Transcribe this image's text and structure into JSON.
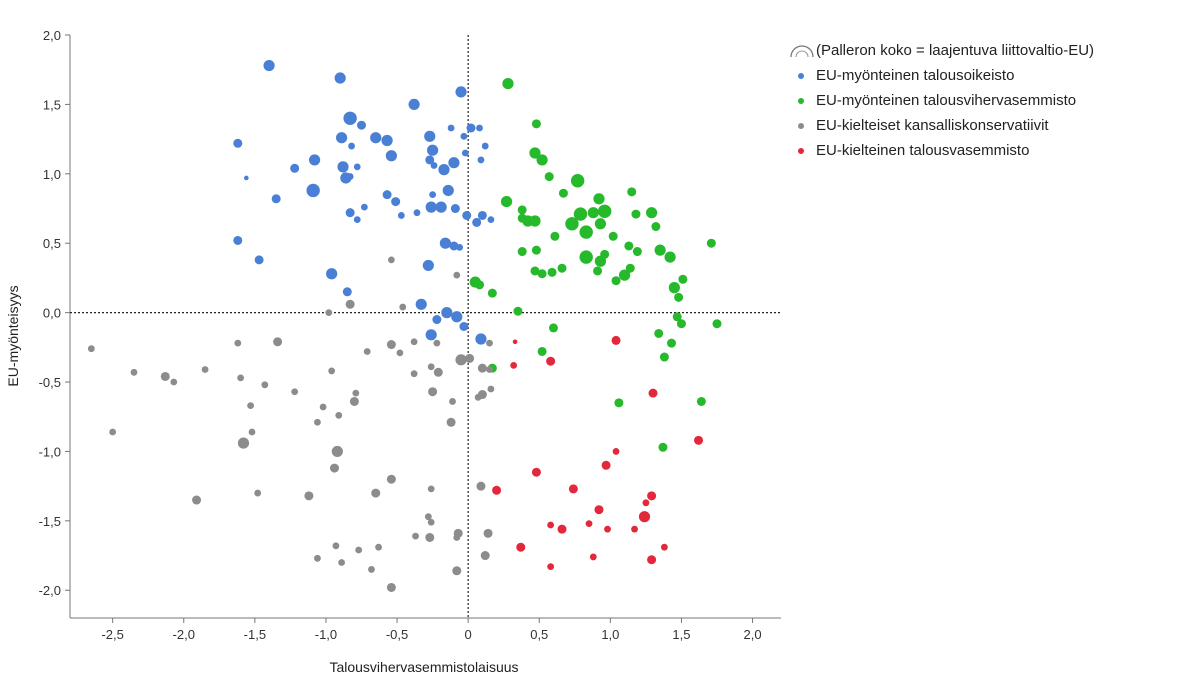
{
  "chart_data": {
    "type": "scatter",
    "xlabel": "Talousvihervasemmistolaisuus",
    "ylabel": "EU-myönteisyys",
    "xlim": [
      -2.8,
      2.2
    ],
    "ylim": [
      -2.2,
      2.0
    ],
    "x_ticks": [
      "-2,5",
      "-2,0",
      "-1,5",
      "-1,0",
      "-0,5",
      "0",
      "0,5",
      "1,0",
      "1,5",
      "2,0"
    ],
    "x_tick_values": [
      -2.5,
      -2.0,
      -1.5,
      -1.0,
      -0.5,
      0,
      0.5,
      1.0,
      1.5,
      2.0
    ],
    "y_ticks": [
      "2,0",
      "1,5",
      "1,0",
      "0,5",
      "0,0",
      "-0,5",
      "-1,0",
      "-1,5",
      "-2,0"
    ],
    "y_tick_values": [
      2.0,
      1.5,
      1.0,
      0.5,
      0.0,
      -0.5,
      -1.0,
      -1.5,
      -2.0
    ],
    "reference_lines": {
      "x": 0,
      "y": 0,
      "style": "dotted"
    },
    "grid": false,
    "legend_position": "top-right",
    "size_legend": "(Palleron koko = laajentuva liittovaltio-EU)",
    "point_size": "s in 1–5 scale (bubble size)",
    "series": [
      {
        "name": "EU-myönteinen talousoikeisto",
        "color": "#4a7fd6",
        "points": [
          [
            -1.4,
            1.78,
            4
          ],
          [
            -0.9,
            1.69,
            4
          ],
          [
            -0.05,
            1.59,
            4
          ],
          [
            -0.38,
            1.5,
            4
          ],
          [
            -0.83,
            1.4,
            5
          ],
          [
            -0.75,
            1.35,
            3
          ],
          [
            -0.12,
            1.33,
            2
          ],
          [
            -0.65,
            1.26,
            4
          ],
          [
            -0.57,
            1.24,
            4
          ],
          [
            -0.27,
            1.27,
            4
          ],
          [
            -0.89,
            1.26,
            4
          ],
          [
            -1.62,
            1.22,
            3
          ],
          [
            -0.82,
            1.2,
            2
          ],
          [
            -0.25,
            1.17,
            4
          ],
          [
            0.02,
            1.33,
            3
          ],
          [
            -0.03,
            1.27,
            2
          ],
          [
            0.08,
            1.33,
            2
          ],
          [
            0.12,
            1.2,
            2
          ],
          [
            -0.1,
            1.08,
            4
          ],
          [
            -0.54,
            1.13,
            4
          ],
          [
            -0.27,
            1.1,
            3
          ],
          [
            -0.02,
            1.15,
            2
          ],
          [
            -1.08,
            1.1,
            4
          ],
          [
            -1.22,
            1.04,
            3
          ],
          [
            -0.88,
            1.05,
            4
          ],
          [
            -0.78,
            1.05,
            2
          ],
          [
            -0.17,
            1.03,
            4
          ],
          [
            -0.24,
            1.06,
            2
          ],
          [
            0.09,
            1.1,
            2
          ],
          [
            -1.56,
            0.97,
            1
          ],
          [
            -0.86,
            0.97,
            4
          ],
          [
            -0.83,
            0.98,
            2
          ],
          [
            -1.09,
            0.88,
            5
          ],
          [
            -0.14,
            0.88,
            4
          ],
          [
            -0.57,
            0.85,
            3
          ],
          [
            -0.25,
            0.85,
            2
          ],
          [
            -1.35,
            0.82,
            3
          ],
          [
            -0.51,
            0.8,
            3
          ],
          [
            -0.73,
            0.76,
            2
          ],
          [
            -0.19,
            0.76,
            4
          ],
          [
            -0.26,
            0.76,
            4
          ],
          [
            -0.09,
            0.75,
            3
          ],
          [
            -0.83,
            0.72,
            3
          ],
          [
            -0.78,
            0.67,
            2
          ],
          [
            -0.47,
            0.7,
            2
          ],
          [
            -0.36,
            0.72,
            2
          ],
          [
            -0.01,
            0.7,
            3
          ],
          [
            0.1,
            0.7,
            3
          ],
          [
            0.16,
            0.67,
            2
          ],
          [
            0.06,
            0.65,
            3
          ],
          [
            -1.62,
            0.52,
            3
          ],
          [
            -0.16,
            0.5,
            4
          ],
          [
            -0.1,
            0.48,
            3
          ],
          [
            -0.06,
            0.47,
            2
          ],
          [
            -1.47,
            0.38,
            3
          ],
          [
            -0.96,
            0.28,
            4
          ],
          [
            -0.28,
            0.34,
            4
          ],
          [
            -0.85,
            0.15,
            3
          ],
          [
            -0.33,
            0.06,
            4
          ],
          [
            -0.15,
            0.0,
            4
          ],
          [
            -0.08,
            -0.03,
            4
          ],
          [
            -0.22,
            -0.05,
            3
          ],
          [
            -0.03,
            -0.1,
            3
          ],
          [
            -0.26,
            -0.16,
            4
          ],
          [
            0.09,
            -0.19,
            4
          ]
        ]
      },
      {
        "name": "EU-myönteinen talousvihervasemmisto",
        "color": "#25b92b",
        "points": [
          [
            0.28,
            1.65,
            4
          ],
          [
            0.48,
            1.36,
            3
          ],
          [
            0.47,
            1.15,
            4
          ],
          [
            0.52,
            1.1,
            4
          ],
          [
            0.57,
            0.98,
            3
          ],
          [
            0.27,
            0.8,
            4
          ],
          [
            0.38,
            0.74,
            3
          ],
          [
            0.67,
            0.86,
            3
          ],
          [
            0.77,
            0.95,
            5
          ],
          [
            0.88,
            0.72,
            4
          ],
          [
            0.92,
            0.82,
            4
          ],
          [
            0.96,
            0.73,
            5
          ],
          [
            1.15,
            0.87,
            3
          ],
          [
            1.18,
            0.71,
            3
          ],
          [
            1.29,
            0.72,
            4
          ],
          [
            0.38,
            0.68,
            3
          ],
          [
            0.42,
            0.66,
            4
          ],
          [
            0.47,
            0.66,
            4
          ],
          [
            0.73,
            0.64,
            5
          ],
          [
            0.83,
            0.58,
            5
          ],
          [
            0.79,
            0.71,
            5
          ],
          [
            0.93,
            0.64,
            4
          ],
          [
            1.02,
            0.55,
            3
          ],
          [
            1.32,
            0.62,
            3
          ],
          [
            0.61,
            0.55,
            3
          ],
          [
            0.48,
            0.45,
            3
          ],
          [
            0.38,
            0.44,
            3
          ],
          [
            1.13,
            0.48,
            3
          ],
          [
            1.19,
            0.44,
            3
          ],
          [
            1.35,
            0.45,
            4
          ],
          [
            1.42,
            0.4,
            4
          ],
          [
            0.83,
            0.4,
            5
          ],
          [
            0.93,
            0.37,
            4
          ],
          [
            0.96,
            0.42,
            3
          ],
          [
            0.66,
            0.32,
            3
          ],
          [
            0.47,
            0.3,
            3
          ],
          [
            0.52,
            0.28,
            3
          ],
          [
            0.59,
            0.29,
            3
          ],
          [
            0.91,
            0.3,
            3
          ],
          [
            1.14,
            0.32,
            3
          ],
          [
            1.1,
            0.27,
            4
          ],
          [
            1.04,
            0.23,
            3
          ],
          [
            1.51,
            0.24,
            3
          ],
          [
            1.45,
            0.18,
            4
          ],
          [
            1.48,
            0.11,
            3
          ],
          [
            1.71,
            0.5,
            3
          ],
          [
            0.05,
            0.22,
            4
          ],
          [
            0.08,
            0.2,
            3
          ],
          [
            0.17,
            0.14,
            3
          ],
          [
            0.35,
            0.01,
            3
          ],
          [
            1.47,
            -0.03,
            3
          ],
          [
            1.5,
            -0.08,
            3
          ],
          [
            1.75,
            -0.08,
            3
          ],
          [
            0.6,
            -0.11,
            3
          ],
          [
            1.34,
            -0.15,
            3
          ],
          [
            1.43,
            -0.22,
            3
          ],
          [
            1.38,
            -0.32,
            3
          ],
          [
            0.52,
            -0.28,
            3
          ],
          [
            0.17,
            -0.4,
            3
          ],
          [
            1.06,
            -0.65,
            3
          ],
          [
            1.64,
            -0.64,
            3
          ],
          [
            1.37,
            -0.97,
            3
          ]
        ]
      },
      {
        "name": "EU-kielteiset kansalliskonservatiivit",
        "color": "#8c8c8c",
        "points": [
          [
            -2.65,
            -0.26,
            2
          ],
          [
            -2.35,
            -0.43,
            2
          ],
          [
            -2.13,
            -0.46,
            3
          ],
          [
            -2.07,
            -0.5,
            2
          ],
          [
            -1.85,
            -0.41,
            2
          ],
          [
            -1.62,
            -0.22,
            2
          ],
          [
            -1.34,
            -0.21,
            3
          ],
          [
            -1.43,
            -0.52,
            2
          ],
          [
            -1.53,
            -0.67,
            2
          ],
          [
            -1.22,
            -0.57,
            2
          ],
          [
            -1.02,
            -0.68,
            2
          ],
          [
            -0.96,
            -0.42,
            2
          ],
          [
            -1.06,
            -0.79,
            2
          ],
          [
            -0.91,
            -0.74,
            2
          ],
          [
            -0.8,
            -0.64,
            3
          ],
          [
            -0.79,
            -0.58,
            2
          ],
          [
            -0.71,
            -0.28,
            2
          ],
          [
            -0.54,
            -0.23,
            3
          ],
          [
            -0.48,
            -0.29,
            2
          ],
          [
            -0.38,
            -0.21,
            2
          ],
          [
            -0.22,
            -0.22,
            2
          ],
          [
            -0.38,
            -0.44,
            2
          ],
          [
            -0.26,
            -0.39,
            2
          ],
          [
            -0.21,
            -0.43,
            3
          ],
          [
            -0.25,
            -0.57,
            3
          ],
          [
            -0.11,
            -0.64,
            2
          ],
          [
            -0.05,
            -0.34,
            4
          ],
          [
            0.01,
            -0.33,
            3
          ],
          [
            0.1,
            -0.4,
            3
          ],
          [
            0.15,
            -0.41,
            2
          ],
          [
            0.1,
            -0.59,
            3
          ],
          [
            0.16,
            -0.55,
            2
          ],
          [
            0.07,
            -0.61,
            2
          ],
          [
            -0.12,
            -0.79,
            3
          ],
          [
            -1.58,
            -0.94,
            4
          ],
          [
            -1.52,
            -0.86,
            2
          ],
          [
            -0.92,
            -1.0,
            4
          ],
          [
            -0.94,
            -1.12,
            3
          ],
          [
            -2.5,
            -0.86,
            2
          ],
          [
            -1.91,
            -1.35,
            3
          ],
          [
            -1.48,
            -1.3,
            2
          ],
          [
            -1.12,
            -1.32,
            3
          ],
          [
            -0.54,
            -1.2,
            3
          ],
          [
            -0.65,
            -1.3,
            3
          ],
          [
            -0.26,
            -1.27,
            2
          ],
          [
            -0.28,
            -1.47,
            2
          ],
          [
            -0.26,
            -1.51,
            2
          ],
          [
            -0.37,
            -1.61,
            2
          ],
          [
            -0.27,
            -1.62,
            3
          ],
          [
            -0.07,
            -1.59,
            3
          ],
          [
            -0.08,
            -1.62,
            2
          ],
          [
            0.09,
            -1.25,
            3
          ],
          [
            0.14,
            -1.59,
            3
          ],
          [
            0.12,
            -1.75,
            3
          ],
          [
            -0.63,
            -1.69,
            2
          ],
          [
            -0.77,
            -1.71,
            2
          ],
          [
            -0.93,
            -1.68,
            2
          ],
          [
            -0.89,
            -1.8,
            2
          ],
          [
            -1.06,
            -1.77,
            2
          ],
          [
            -0.68,
            -1.85,
            2
          ],
          [
            -0.54,
            -1.98,
            3
          ],
          [
            -0.08,
            -1.86,
            3
          ],
          [
            -0.98,
            0.0,
            2
          ],
          [
            -0.83,
            0.06,
            3
          ],
          [
            -0.54,
            0.38,
            2
          ],
          [
            -0.08,
            0.27,
            2
          ],
          [
            -0.46,
            0.04,
            2
          ],
          [
            -1.6,
            -0.47,
            2
          ],
          [
            0.15,
            -0.22,
            2
          ]
        ]
      },
      {
        "name": "EU-kielteinen talousvasemmisto",
        "color": "#e2283a",
        "points": [
          [
            0.33,
            -0.21,
            1
          ],
          [
            0.32,
            -0.38,
            2
          ],
          [
            0.58,
            -0.35,
            3
          ],
          [
            1.04,
            -0.2,
            3
          ],
          [
            1.3,
            -0.58,
            3
          ],
          [
            1.62,
            -0.92,
            3
          ],
          [
            1.04,
            -1.0,
            2
          ],
          [
            0.97,
            -1.1,
            3
          ],
          [
            0.48,
            -1.15,
            3
          ],
          [
            0.74,
            -1.27,
            3
          ],
          [
            0.2,
            -1.28,
            3
          ],
          [
            1.29,
            -1.32,
            3
          ],
          [
            1.25,
            -1.37,
            2
          ],
          [
            0.92,
            -1.42,
            3
          ],
          [
            1.24,
            -1.47,
            4
          ],
          [
            0.85,
            -1.52,
            2
          ],
          [
            0.58,
            -1.53,
            2
          ],
          [
            0.66,
            -1.56,
            3
          ],
          [
            0.98,
            -1.56,
            2
          ],
          [
            1.17,
            -1.56,
            2
          ],
          [
            0.37,
            -1.69,
            3
          ],
          [
            1.38,
            -1.69,
            2
          ],
          [
            0.88,
            -1.76,
            2
          ],
          [
            1.29,
            -1.78,
            3
          ],
          [
            0.58,
            -1.83,
            2
          ]
        ]
      }
    ]
  }
}
